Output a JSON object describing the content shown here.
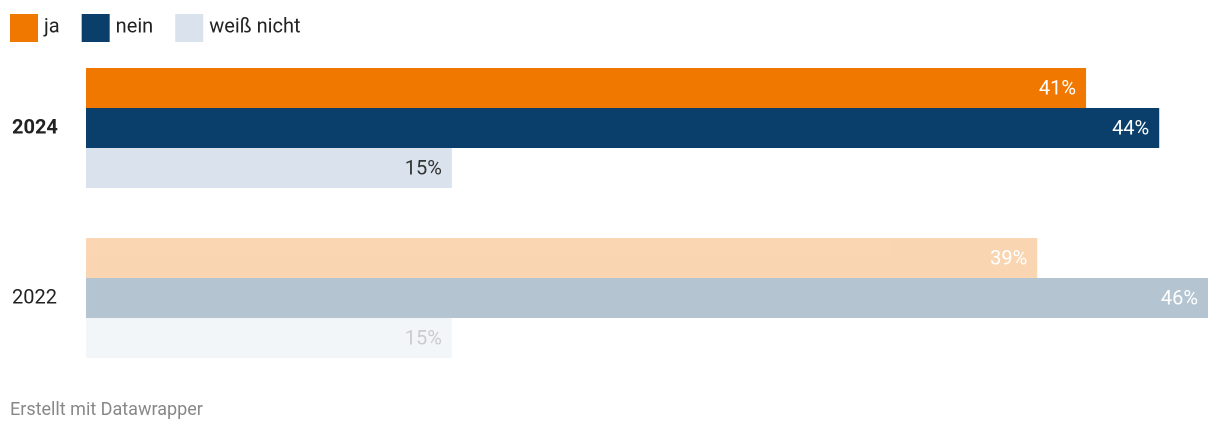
{
  "chart_data": {
    "type": "bar",
    "categories": [
      "2024",
      "2022"
    ],
    "series": [
      {
        "name": "ja",
        "color": "#f07800",
        "values": [
          41,
          39
        ],
        "value_labels": [
          "41%",
          "39%"
        ]
      },
      {
        "name": "nein",
        "color": "#0a3f6b",
        "values": [
          44,
          46
        ],
        "value_labels": [
          "44%",
          "46%"
        ]
      },
      {
        "name": "weiß nicht",
        "color": "#dae3ed",
        "values": [
          15,
          15
        ],
        "value_labels": [
          "15%",
          "15%"
        ]
      }
    ],
    "footer": "Erstellt mit Datawrapper"
  }
}
